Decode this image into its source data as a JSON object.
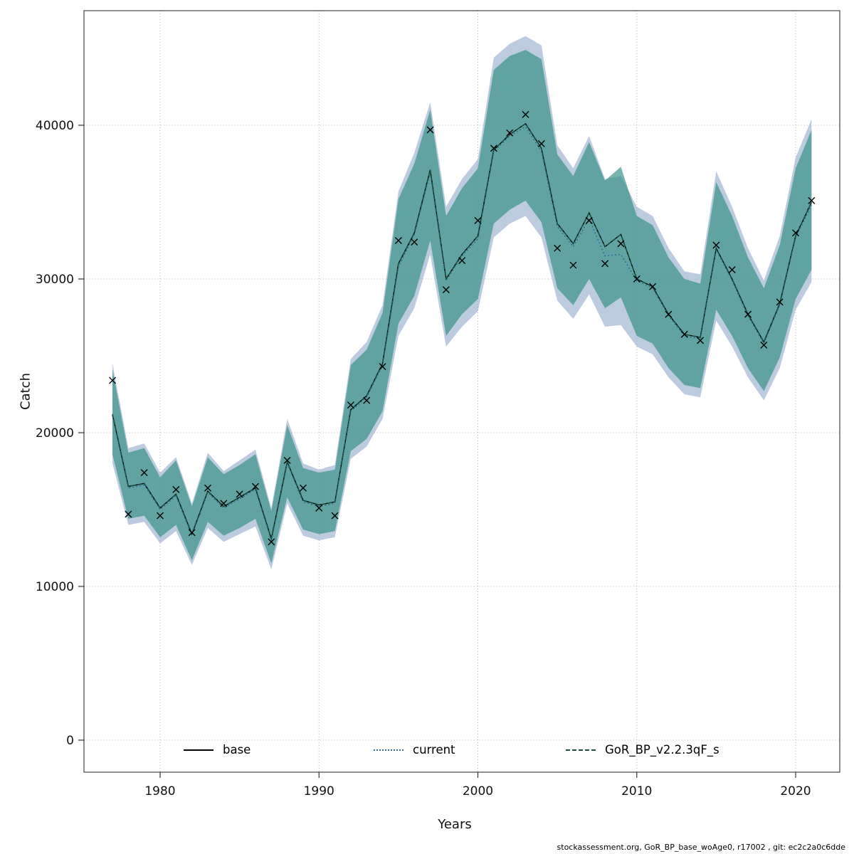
{
  "footer": {
    "text": "stockassessment.org, GoR_BP_base_woAge0, r17002 , git: ec2c2a0c6dde"
  },
  "chart_data": {
    "type": "line",
    "title": "",
    "xlabel": "Years",
    "ylabel": "Catch",
    "x_ticks": [
      1980,
      1990,
      2000,
      2010,
      2020
    ],
    "y_ticks": [
      0,
      10000,
      20000,
      30000,
      40000
    ],
    "xlim": [
      1976.2,
      2021.9
    ],
    "ylim": [
      -2000,
      47400
    ],
    "grid": "dotted",
    "legend_position": "bottom-inside",
    "x": [
      1977,
      1978,
      1979,
      1980,
      1981,
      1982,
      1983,
      1984,
      1985,
      1986,
      1987,
      1988,
      1989,
      1990,
      1991,
      1992,
      1993,
      1994,
      1995,
      1996,
      1997,
      1998,
      1999,
      2000,
      2001,
      2002,
      2003,
      2004,
      2005,
      2006,
      2007,
      2008,
      2009,
      2010,
      2011,
      2012,
      2013,
      2014,
      2015,
      2016,
      2017,
      2018,
      2019,
      2020,
      2021
    ],
    "markers": {
      "name": "observed-catch",
      "symbol": "x",
      "color": "#000000",
      "values": [
        23400,
        14700,
        17400,
        14600,
        16300,
        13500,
        16400,
        15400,
        16000,
        16500,
        12900,
        18200,
        16400,
        15100,
        14600,
        21800,
        22100,
        24300,
        32500,
        32400,
        39700,
        29300,
        31200,
        33800,
        38500,
        39500,
        40700,
        38800,
        32000,
        30900,
        33800,
        31000,
        32300,
        30000,
        29500,
        27700,
        26400,
        26000,
        32200,
        30600,
        27700,
        25700,
        28500,
        33000,
        35100
      ]
    },
    "series": [
      {
        "name": "base",
        "line_color": "#000000",
        "line_style": "solid",
        "values": [
          21200,
          16500,
          16700,
          15100,
          16000,
          13400,
          16200,
          15200,
          15800,
          16400,
          13100,
          18100,
          15600,
          15300,
          15500,
          21500,
          22400,
          24500,
          31000,
          33000,
          37100,
          30000,
          31600,
          32800,
          38400,
          39400,
          40100,
          38500,
          33600,
          32300,
          34300,
          32100,
          32900,
          30000,
          29500,
          27700,
          26400,
          26200,
          32000,
          30000,
          27700,
          25900,
          28400,
          32800,
          35000
        ]
      },
      {
        "name": "current",
        "line_color": "#2b6a8f",
        "line_style": "dotted",
        "band_color": "#8fa8c9",
        "band_opacity": 0.6,
        "values": [
          21100,
          16400,
          16600,
          15000,
          15900,
          13300,
          16100,
          15100,
          15700,
          16300,
          13000,
          18000,
          15500,
          15200,
          15400,
          21400,
          22300,
          24400,
          30800,
          32900,
          36900,
          29900,
          31500,
          32600,
          38300,
          39300,
          39900,
          38300,
          33400,
          32100,
          33900,
          31500,
          31600,
          29900,
          29400,
          27600,
          26300,
          26100,
          31900,
          29900,
          27600,
          25800,
          28300,
          32700,
          34800
        ],
        "band_lower": [
          18000,
          14000,
          14200,
          12800,
          13600,
          11400,
          13800,
          12900,
          13400,
          13900,
          11100,
          15400,
          13300,
          13000,
          13200,
          18300,
          19100,
          20900,
          26300,
          28100,
          31600,
          25600,
          26900,
          27900,
          32700,
          33600,
          34100,
          32700,
          28600,
          27400,
          29000,
          26900,
          27000,
          25600,
          25100,
          23600,
          22500,
          22300,
          27300,
          25600,
          23600,
          22100,
          24200,
          28000,
          29800
        ],
        "band_upper": [
          24500,
          19000,
          19300,
          17400,
          18400,
          15400,
          18700,
          17500,
          18200,
          18900,
          15100,
          20900,
          18000,
          17600,
          17900,
          24800,
          25900,
          28300,
          35700,
          38200,
          41500,
          34700,
          36500,
          37800,
          44400,
          45300,
          45800,
          45200,
          38700,
          37200,
          39300,
          36500,
          36700,
          34700,
          34100,
          32000,
          30500,
          30300,
          37000,
          34700,
          32000,
          29900,
          32800,
          37900,
          40400
        ]
      },
      {
        "name": "GoR_BP_v2.2.3qF_s",
        "line_color": "#174f43",
        "line_style": "dashed",
        "band_color": "#379084",
        "band_opacity": 0.68,
        "values": [
          21200,
          16500,
          16700,
          15100,
          16000,
          13400,
          16200,
          15200,
          15800,
          16400,
          13100,
          18100,
          15600,
          15300,
          15500,
          21500,
          22400,
          24500,
          31000,
          33000,
          37100,
          30000,
          31600,
          32800,
          38400,
          39400,
          40100,
          38500,
          33600,
          32300,
          34300,
          32100,
          32900,
          30000,
          29500,
          27700,
          26400,
          26200,
          32000,
          30000,
          27700,
          25900,
          28400,
          32800,
          35000
        ],
        "band_lower": [
          18600,
          14400,
          14600,
          13200,
          14000,
          11700,
          14200,
          13300,
          13800,
          14400,
          11500,
          15800,
          13700,
          13400,
          13600,
          18800,
          19600,
          21400,
          27100,
          28900,
          32500,
          26300,
          27700,
          28700,
          33600,
          34500,
          35100,
          33700,
          29400,
          28300,
          30000,
          28100,
          28800,
          26300,
          25800,
          24200,
          23100,
          22900,
          28000,
          26300,
          24200,
          22700,
          24900,
          28700,
          30600
        ],
        "band_upper": [
          24100,
          18700,
          19000,
          17100,
          18200,
          15200,
          18400,
          17300,
          17900,
          18600,
          14900,
          20500,
          17700,
          17400,
          17600,
          24400,
          25400,
          27800,
          35200,
          37500,
          41000,
          34100,
          35900,
          37200,
          43600,
          44500,
          44900,
          44300,
          38100,
          36700,
          38900,
          36400,
          37300,
          34100,
          33500,
          31400,
          30000,
          29700,
          36300,
          34100,
          31400,
          29400,
          32200,
          37200,
          39700
        ]
      }
    ],
    "legend": [
      {
        "label": "base",
        "color": "#000000",
        "style": "solid"
      },
      {
        "label": "current",
        "color": "#2b6a8f",
        "style": "dotted"
      },
      {
        "label": "GoR_BP_v2.2.3qF_s",
        "color": "#174f43",
        "style": "dashed"
      }
    ]
  }
}
